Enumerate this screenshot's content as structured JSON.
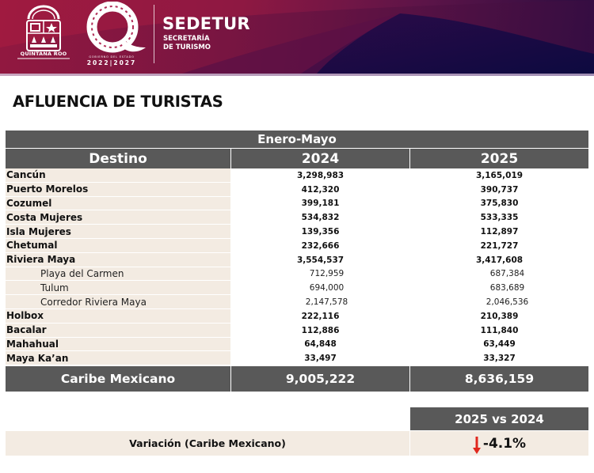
{
  "header": {
    "state_logo_text": "QUINTANA ROO",
    "gov_small": "GOBIERNO DEL ESTADO",
    "gov_years": "2022|2027",
    "agency": "SEDETUR",
    "agency_sub_1": "SECRETARÍA",
    "agency_sub_2": "DE TURISMO",
    "colors": {
      "banner_red": "#a01a40",
      "banner_purple": "#2a0c40"
    }
  },
  "title": "AFLUENCIA DE TURISTAS",
  "table": {
    "period": "Enero-Mayo",
    "columns": [
      "Destino",
      "2024",
      "2025"
    ],
    "rows": [
      {
        "destino": "Cancún",
        "y2024": "3,298,983",
        "y2025": "3,165,019"
      },
      {
        "destino": "Puerto Morelos",
        "y2024": "412,320",
        "y2025": "390,737"
      },
      {
        "destino": "Cozumel",
        "y2024": "399,181",
        "y2025": "375,830"
      },
      {
        "destino": "Costa Mujeres",
        "y2024": "534,832",
        "y2025": "533,335"
      },
      {
        "destino": "Isla Mujeres",
        "y2024": "139,356",
        "y2025": "112,897"
      },
      {
        "destino": "Chetumal",
        "y2024": "232,666",
        "y2025": "221,727"
      },
      {
        "destino": "Riviera Maya",
        "y2024": "3,554,537",
        "y2025": "3,417,608"
      },
      {
        "destino": "Playa del Carmen",
        "y2024": "712,959",
        "y2025": "687,384"
      },
      {
        "destino": "Tulum",
        "y2024": "694,000",
        "y2025": "683,689"
      },
      {
        "destino": "Corredor Riviera Maya",
        "y2024": "2,147,578",
        "y2025": "2,046,536"
      },
      {
        "destino": "Holbox",
        "y2024": "222,116",
        "y2025": "210,389"
      },
      {
        "destino": "Bacalar",
        "y2024": "112,886",
        "y2025": "111,840"
      },
      {
        "destino": "Mahahual",
        "y2024": "64,848",
        "y2025": "63,449"
      },
      {
        "destino": "Maya Ka’an",
        "y2024": "33,497",
        "y2025": "33,327"
      }
    ],
    "total": {
      "label": "Caribe Mexicano",
      "y2024": "9,005,222",
      "y2025": "8,636,159"
    }
  },
  "variation": {
    "header": "2025 vs 2024",
    "label": "Variación (Caribe Mexicano)",
    "value": "-4.1%",
    "trend_icon": "arrow-down-icon",
    "trend_color": "#e0281e"
  }
}
